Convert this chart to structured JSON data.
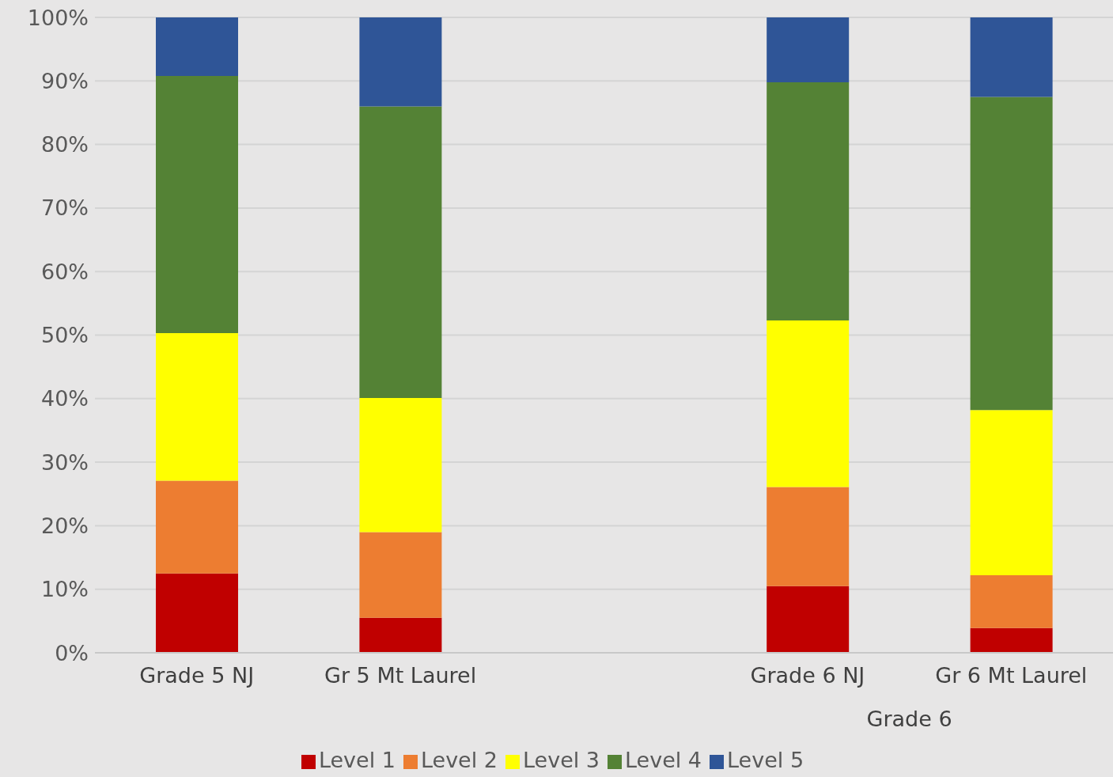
{
  "chart_data": {
    "type": "bar",
    "stacked": true,
    "categories": [
      "Grade 5 NJ",
      "Gr 5 Mt Laurel",
      null,
      "Grade 6 NJ",
      "Gr 6 Mt Laurel"
    ],
    "series": [
      {
        "name": "Level 1",
        "color": "#c00000",
        "values": [
          12.5,
          5.5,
          null,
          10.5,
          3.9
        ]
      },
      {
        "name": "Level 2",
        "color": "#ed7d31",
        "values": [
          14.6,
          13.5,
          null,
          15.6,
          8.3
        ]
      },
      {
        "name": "Level 3",
        "color": "#ffff00",
        "values": [
          23.2,
          21.1,
          null,
          26.2,
          26.0
        ]
      },
      {
        "name": "Level 4",
        "color": "#548235",
        "values": [
          40.5,
          45.9,
          null,
          37.5,
          49.3
        ]
      },
      {
        "name": "Level 5",
        "color": "#2f5597",
        "values": [
          9.2,
          14.0,
          null,
          10.2,
          12.5
        ]
      }
    ],
    "ylim": [
      0,
      100
    ],
    "yticks": [
      {
        "value": 0,
        "label": "0%"
      },
      {
        "value": 10,
        "label": "10%"
      },
      {
        "value": 20,
        "label": "20%"
      },
      {
        "value": 30,
        "label": "30%"
      },
      {
        "value": 40,
        "label": "40%"
      },
      {
        "value": 50,
        "label": "50%"
      },
      {
        "value": 60,
        "label": "60%"
      },
      {
        "value": 70,
        "label": "70%"
      },
      {
        "value": 80,
        "label": "80%"
      },
      {
        "value": 90,
        "label": "90%"
      },
      {
        "value": 100,
        "label": "100%"
      }
    ],
    "grid": "y",
    "legend": "bottom",
    "annotations": [
      "Grade 6"
    ]
  }
}
